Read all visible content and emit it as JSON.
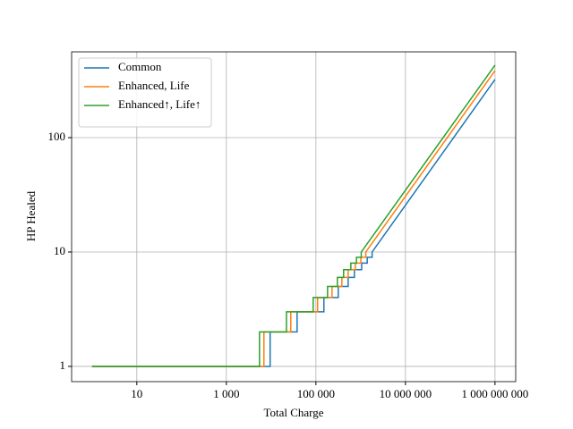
{
  "chart_data": {
    "type": "line",
    "xlabel": "Total Charge",
    "ylabel": "HP Healed",
    "xscale": "log",
    "yscale": "log",
    "grid": true,
    "legend": "upper left",
    "xlim": [
      0.35,
      2900000000
    ],
    "ylim": [
      0.736,
      562
    ],
    "xticks": [
      10,
      {
        "value": 1000,
        "label": "1 000"
      },
      {
        "value": 100000,
        "label": "100 000"
      },
      {
        "value": 10000000,
        "label": "10 000 000"
      },
      {
        "value": 1000000000,
        "label": "1 000 000 000"
      }
    ],
    "yticks": [
      1,
      10,
      100
    ],
    "series": [
      {
        "name": "Common",
        "color": "#1f77b4",
        "x": [
          1,
          9500,
          9500,
          38000,
          38000,
          151000,
          151000,
          316000,
          316000,
          525000,
          525000,
          724000,
          724000,
          1050000,
          1050000,
          1400000,
          1400000,
          1800000,
          1800000,
          1000000000
        ],
        "values": [
          1,
          1,
          2,
          2,
          3,
          3,
          4,
          4,
          5,
          5,
          6,
          6,
          7,
          7,
          8,
          8,
          9,
          9,
          10,
          322
        ]
      },
      {
        "name": "Enhanced, Life",
        "color": "#ff7f0e",
        "x": [
          1,
          6900,
          6900,
          27500,
          27500,
          109000,
          109000,
          229000,
          229000,
          380000,
          380000,
          525000,
          525000,
          760000,
          760000,
          1010000,
          1010000,
          1300000,
          1300000,
          1000000000
        ],
        "values": [
          1,
          1,
          2,
          2,
          3,
          3,
          4,
          4,
          5,
          5,
          6,
          6,
          7,
          7,
          8,
          8,
          9,
          9,
          10,
          385
        ]
      },
      {
        "name": "Enhanced↑, Life↑",
        "color": "#2ca02c",
        "x": [
          1,
          5500,
          5500,
          22000,
          22000,
          87000,
          87000,
          182000,
          182000,
          302000,
          302000,
          416000,
          416000,
          603000,
          603000,
          805000,
          805000,
          1030000,
          1030000,
          1000000000
        ],
        "values": [
          1,
          1,
          2,
          2,
          3,
          3,
          4,
          4,
          5,
          5,
          6,
          6,
          7,
          7,
          8,
          8,
          9,
          9,
          10,
          430
        ]
      }
    ]
  }
}
